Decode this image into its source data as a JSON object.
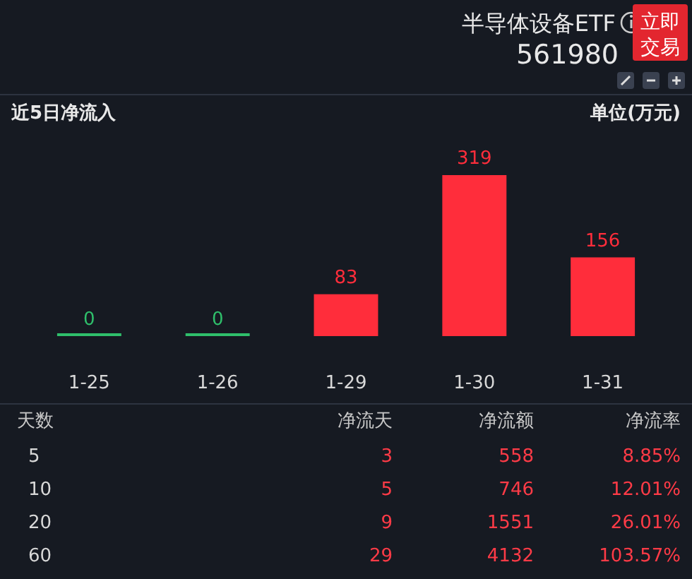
{
  "chart_data": [
    {
      "type": "bar",
      "title": "近5日净流入",
      "subtitle": "单位(万元)",
      "annotations": [
        "半导体设备ETF",
        "561980",
        "立即交易"
      ],
      "categories": [
        "1-25",
        "1-26",
        "1-29",
        "1-30",
        "1-31"
      ],
      "values": [
        0,
        0,
        83,
        319,
        156
      ],
      "colors": [
        "#2fbf6b",
        "#2fbf6b",
        "#ff2d3b",
        "#ff2d3b",
        "#ff2d3b"
      ],
      "data_labels": true
    },
    {
      "type": "other",
      "categories": [
        "天数",
        "净流天",
        "净流额",
        "净流率"
      ],
      "annotations": [
        "5",
        "3",
        "558",
        "8.85%",
        "10",
        "5",
        "746",
        "12.01%",
        "20",
        "9",
        "1551",
        "26.01%",
        "60",
        "29",
        "4132",
        "103.57%"
      ]
    }
  ]
}
